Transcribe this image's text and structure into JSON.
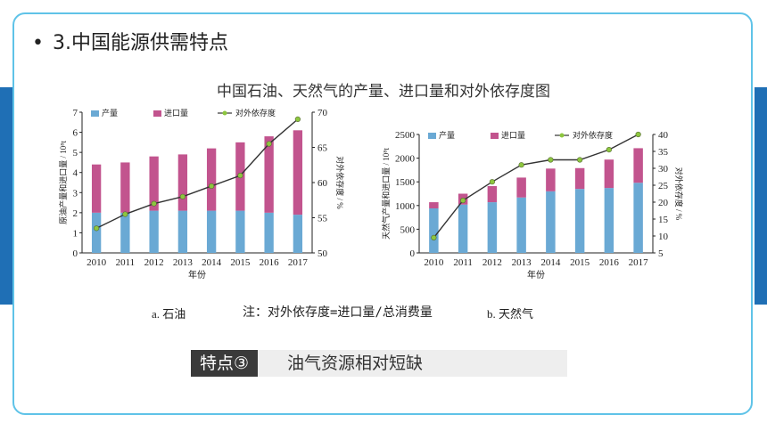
{
  "slide": {
    "bullet": "•",
    "heading": "3.中国能源供需特点",
    "figure_title": "中国石油、天然气的产量、进口量和对外依存度图",
    "caption_a": "a. 石油",
    "caption_b": "b. 天然气",
    "note": "注：对外依存度=进口量/总消费量",
    "feature_tag": "特点③",
    "feature_text": "油气资源相对短缺"
  },
  "colors": {
    "accent": "#1f6fb5",
    "border": "#5fc3e8",
    "production": "#6aa9d4",
    "import": "#c2548e",
    "dependency_line": "#333333",
    "dependency_marker": "#8dc63f"
  },
  "chart_data": [
    {
      "type": "bar",
      "stacked": true,
      "categories": [
        "2010",
        "2011",
        "2012",
        "2013",
        "2014",
        "2015",
        "2016",
        "2017"
      ],
      "series": [
        {
          "name": "产量",
          "axis": "left",
          "values": [
            2.0,
            2.0,
            2.1,
            2.1,
            2.1,
            2.1,
            2.0,
            1.9
          ]
        },
        {
          "name": "进口量",
          "axis": "left",
          "values": [
            2.4,
            2.5,
            2.7,
            2.8,
            3.1,
            3.4,
            3.8,
            4.2
          ]
        },
        {
          "name": "对外依存度",
          "axis": "right",
          "kind": "line",
          "values": [
            53.5,
            55.5,
            57,
            58,
            59.5,
            61,
            65.5,
            69
          ]
        }
      ],
      "ylabel": "原油产量和进口量 / 10⁸t",
      "y2label": "对外依存度 / %",
      "xlabel": "年份",
      "ylim": [
        0,
        7
      ],
      "y2lim": [
        50,
        70
      ],
      "yticks": [
        "0",
        "1",
        "2",
        "3",
        "4",
        "5",
        "6",
        "7"
      ],
      "y2ticks": [
        "50",
        "55",
        "60",
        "65",
        "70"
      ],
      "legend": "top"
    },
    {
      "type": "bar",
      "stacked": true,
      "categories": [
        "2010",
        "2011",
        "2012",
        "2013",
        "2014",
        "2015",
        "2016",
        "2017"
      ],
      "series": [
        {
          "name": "产量",
          "axis": "left",
          "values": [
            940,
            1020,
            1070,
            1170,
            1300,
            1350,
            1370,
            1480
          ]
        },
        {
          "name": "进口量",
          "axis": "left",
          "values": [
            130,
            230,
            340,
            420,
            480,
            440,
            600,
            730
          ]
        },
        {
          "name": "对外依存度",
          "axis": "right",
          "kind": "line",
          "values": [
            9.5,
            20.5,
            26,
            31,
            32.5,
            32.5,
            35.5,
            40
          ]
        }
      ],
      "ylabel": "天然气产量和进口量 / 10⁸t",
      "y2label": "对外依存度 / %",
      "xlabel": "年份",
      "ylim": [
        0,
        2500
      ],
      "y2lim": [
        5,
        40
      ],
      "yticks": [
        "0",
        "500",
        "1000",
        "1500",
        "2000",
        "2500"
      ],
      "y2ticks": [
        "5",
        "10",
        "15",
        "20",
        "25",
        "30",
        "35",
        "40"
      ],
      "legend": "top"
    }
  ]
}
